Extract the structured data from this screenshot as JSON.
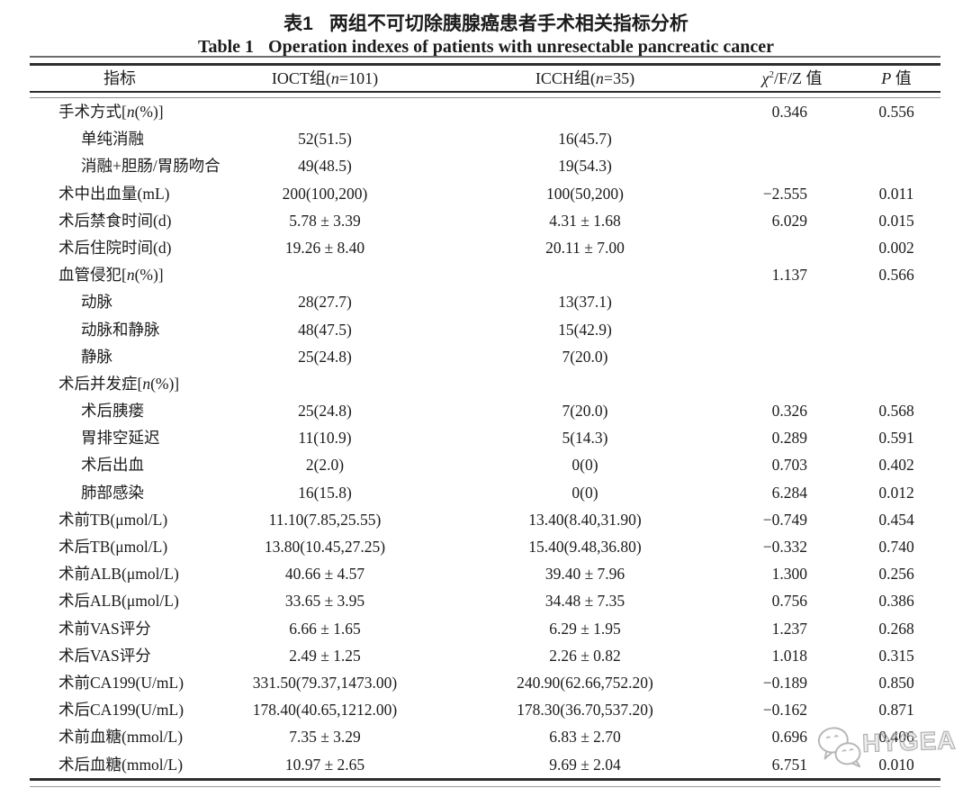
{
  "titles": {
    "cn_tag": "表1",
    "cn_text": "两组不可切除胰腺癌患者手术相关指标分析",
    "en_tag": "Table 1",
    "en_text": "Operation indexes of patients with unresectable pancreatic cancer"
  },
  "table": {
    "headers": {
      "indicator": "指标",
      "group1": "IOCT组(<i>n</i>=101)",
      "group2": "ICCH组(<i>n</i>=35)",
      "statistic": "<i>χ</i><sup>2</sup>/F/Z 值",
      "p": "<i>P</i> 值"
    },
    "rows": [
      {
        "label": "手术方式[<i>n</i>(%)]",
        "indent": false,
        "g1": "",
        "g2": "",
        "stat": "0.346",
        "p": "0.556"
      },
      {
        "label": "单纯消融",
        "indent": true,
        "g1": "52(51.5)",
        "g2": "16(45.7)",
        "stat": "",
        "p": ""
      },
      {
        "label": "消融+胆肠/胃肠吻合",
        "indent": true,
        "g1": "49(48.5)",
        "g2": "19(54.3)",
        "stat": "",
        "p": ""
      },
      {
        "label": "术中出血量(mL)",
        "indent": false,
        "g1": "200(100,200)",
        "g2": "100(50,200)",
        "stat": "−2.555",
        "p": "0.011"
      },
      {
        "label": "术后禁食时间(d)",
        "indent": false,
        "g1": "5.78 ± 3.39",
        "g2": "4.31 ± 1.68",
        "stat": "6.029",
        "p": "0.015"
      },
      {
        "label": "术后住院时间(d)",
        "indent": false,
        "g1": "19.26 ± 8.40",
        "g2": "20.11 ± 7.00",
        "stat": "",
        "p": "0.002"
      },
      {
        "label": "血管侵犯[<i>n</i>(%)]",
        "indent": false,
        "g1": "",
        "g2": "",
        "stat": "1.137",
        "p": "0.566"
      },
      {
        "label": "动脉",
        "indent": true,
        "g1": "28(27.7)",
        "g2": "13(37.1)",
        "stat": "",
        "p": ""
      },
      {
        "label": "动脉和静脉",
        "indent": true,
        "g1": "48(47.5)",
        "g2": "15(42.9)",
        "stat": "",
        "p": ""
      },
      {
        "label": "静脉",
        "indent": true,
        "g1": "25(24.8)",
        "g2": "7(20.0)",
        "stat": "",
        "p": ""
      },
      {
        "label": "术后并发症[<i>n</i>(%)]",
        "indent": false,
        "g1": "",
        "g2": "",
        "stat": "",
        "p": ""
      },
      {
        "label": "术后胰瘘",
        "indent": true,
        "g1": "25(24.8)",
        "g2": "7(20.0)",
        "stat": "0.326",
        "p": "0.568"
      },
      {
        "label": "胃排空延迟",
        "indent": true,
        "g1": "11(10.9)",
        "g2": "5(14.3)",
        "stat": "0.289",
        "p": "0.591"
      },
      {
        "label": "术后出血",
        "indent": true,
        "g1": "2(2.0)",
        "g2": "0(0)",
        "stat": "0.703",
        "p": "0.402"
      },
      {
        "label": "肺部感染",
        "indent": true,
        "g1": "16(15.8)",
        "g2": "0(0)",
        "stat": "6.284",
        "p": "0.012"
      },
      {
        "label": "术前TB(μmol/L)",
        "indent": false,
        "g1": "11.10(7.85,25.55)",
        "g2": "13.40(8.40,31.90)",
        "stat": "−0.749",
        "p": "0.454"
      },
      {
        "label": "术后TB(μmol/L)",
        "indent": false,
        "g1": "13.80(10.45,27.25)",
        "g2": "15.40(9.48,36.80)",
        "stat": "−0.332",
        "p": "0.740"
      },
      {
        "label": "术前ALB(μmol/L)",
        "indent": false,
        "g1": "40.66 ± 4.57",
        "g2": "39.40 ± 7.96",
        "stat": "1.300",
        "p": "0.256"
      },
      {
        "label": "术后ALB(μmol/L)",
        "indent": false,
        "g1": "33.65 ± 3.95",
        "g2": "34.48 ± 7.35",
        "stat": "0.756",
        "p": "0.386"
      },
      {
        "label": "术前VAS评分",
        "indent": false,
        "g1": "6.66 ± 1.65",
        "g2": "6.29 ± 1.95",
        "stat": "1.237",
        "p": "0.268"
      },
      {
        "label": "术后VAS评分",
        "indent": false,
        "g1": "2.49 ± 1.25",
        "g2": "2.26 ± 0.82",
        "stat": "1.018",
        "p": "0.315"
      },
      {
        "label": "术前CA199(U/mL)",
        "indent": false,
        "g1": "331.50(79.37,1473.00)",
        "g2": "240.90(62.66,752.20)",
        "stat": "−0.189",
        "p": "0.850"
      },
      {
        "label": "术后CA199(U/mL)",
        "indent": false,
        "g1": "178.40(40.65,1212.00)",
        "g2": "178.30(36.70,537.20)",
        "stat": "−0.162",
        "p": "0.871"
      },
      {
        "label": "术前血糖(mmol/L)",
        "indent": false,
        "g1": "7.35 ± 3.29",
        "g2": "6.83 ± 2.70",
        "stat": "0.696",
        "p": "0.406"
      },
      {
        "label": "术后血糖(mmol/L)",
        "indent": false,
        "g1": "10.97 ± 2.65",
        "g2": "9.69 ± 2.04",
        "stat": "6.751",
        "p": "0.010"
      }
    ]
  },
  "watermark": {
    "text": "HYGEA",
    "icon": "wechat-icon",
    "color": "#a9a9a9"
  }
}
